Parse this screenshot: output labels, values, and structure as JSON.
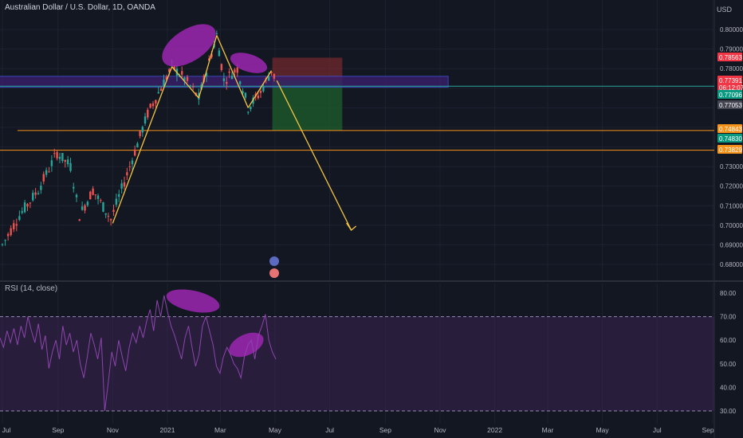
{
  "header": {
    "title": "Australian Dollar / U.S. Dollar, 1D, OANDA",
    "currency": "USD"
  },
  "rsi_panel": {
    "title": "RSI (14, close)"
  },
  "colors": {
    "background": "#131722",
    "grid": "#1e2230",
    "up_candle": "#26a69a",
    "down_candle": "#ef5350",
    "orange_line": "#f7931a",
    "rsi_line": "#8e44ad",
    "rsi_band": "#3b2452",
    "ellipse": "#9c27b0",
    "arrow": "#f5c542",
    "stop_zone": "#7f2a2f",
    "target_zone": "#1d5a2c",
    "box_zone": "#3a1f6b"
  },
  "chart_data": [
    {
      "type": "candlestick",
      "title": "Australian Dollar / U.S. Dollar, 1D, OANDA",
      "x_ticks": [
        "Jul",
        "Sep",
        "Nov",
        "2021",
        "Mar",
        "May",
        "Jul",
        "Sep",
        "Nov",
        "2022",
        "Mar",
        "May",
        "Jul",
        "Sep"
      ],
      "y_ticks": [
        "0.80000",
        "0.79000",
        "0.78000",
        "0.73000",
        "0.72000",
        "0.71000",
        "0.70000",
        "0.69000",
        "0.68000"
      ],
      "ylim": [
        0.675,
        0.81
      ],
      "price_path_points": [
        {
          "x": "2020-07-01",
          "y": 0.69
        },
        {
          "x": "2020-07-20",
          "y": 0.705
        },
        {
          "x": "2020-08-10",
          "y": 0.718
        },
        {
          "x": "2020-08-31",
          "y": 0.737
        },
        {
          "x": "2020-09-15",
          "y": 0.73
        },
        {
          "x": "2020-09-25",
          "y": 0.705
        },
        {
          "x": "2020-10-10",
          "y": 0.718
        },
        {
          "x": "2020-10-30",
          "y": 0.703
        },
        {
          "x": "2020-11-20",
          "y": 0.73
        },
        {
          "x": "2020-12-10",
          "y": 0.757
        },
        {
          "x": "2021-01-06",
          "y": 0.781
        },
        {
          "x": "2021-01-20",
          "y": 0.775
        },
        {
          "x": "2021-02-05",
          "y": 0.765
        },
        {
          "x": "2021-02-25",
          "y": 0.797
        },
        {
          "x": "2021-03-05",
          "y": 0.774
        },
        {
          "x": "2021-03-20",
          "y": 0.78
        },
        {
          "x": "2021-04-01",
          "y": 0.76
        },
        {
          "x": "2021-04-15",
          "y": 0.768
        },
        {
          "x": "2021-04-27",
          "y": 0.779
        },
        {
          "x": "2021-05-03",
          "y": 0.773
        }
      ],
      "price_labels": [
        {
          "value": "0.78563",
          "color": "#f23645"
        },
        {
          "value": "0.77391",
          "color": "#f23645"
        },
        {
          "value": "06:12:07",
          "color": "#f23645"
        },
        {
          "value": "0.77096",
          "color": "#089981"
        },
        {
          "value": "0.77053",
          "color": "#434651"
        },
        {
          "value": "0.74843",
          "color": "#f7931a"
        },
        {
          "value": "0.74830",
          "color": "#089981"
        },
        {
          "value": "0.73829",
          "color": "#f7931a"
        }
      ],
      "horizontal_levels": [
        0.7484,
        0.7383,
        0.771
      ],
      "zones": [
        {
          "name": "stop-zone",
          "from": 0.7739,
          "to": 0.7856,
          "x_from": "2021-04-28",
          "x_to": "2021-07-15"
        },
        {
          "name": "target-zone",
          "from": 0.7484,
          "to": 0.7739,
          "x_from": "2021-04-28",
          "x_to": "2021-07-15"
        },
        {
          "name": "resistance-box",
          "from": 0.7705,
          "to": 0.7761,
          "x_from": "2020-06-01",
          "x_to": "2021-11-10"
        }
      ],
      "projection_arrow": {
        "from": {
          "x": "2021-05-03",
          "y": 0.7739
        },
        "to": {
          "x": "2021-07-25",
          "y": 0.6975
        }
      }
    },
    {
      "type": "line",
      "title": "RSI (14, close)",
      "y_ticks": [
        "80.00",
        "70.00",
        "60.00",
        "50.00",
        "40.00",
        "30.00"
      ],
      "ylim": [
        27,
        83
      ],
      "guide_levels": [
        70,
        30
      ],
      "series": [
        {
          "values": [
            61,
            57,
            64,
            59,
            65,
            58,
            66,
            61,
            70,
            64,
            59,
            67,
            56,
            62,
            48,
            55,
            60,
            52,
            66,
            58,
            63,
            55,
            60,
            50,
            44,
            53,
            63,
            58,
            52,
            61,
            30,
            42,
            55,
            49,
            60,
            53,
            47,
            57,
            63,
            59,
            66,
            61,
            68,
            73,
            64,
            77,
            70,
            79,
            72,
            66,
            62,
            57,
            52,
            61,
            66,
            57,
            49,
            54,
            66,
            70,
            64,
            58,
            49,
            46,
            53,
            57,
            54,
            50,
            48,
            44,
            53,
            58,
            60,
            52,
            62,
            66,
            71,
            60,
            55,
            52
          ]
        }
      ]
    }
  ]
}
